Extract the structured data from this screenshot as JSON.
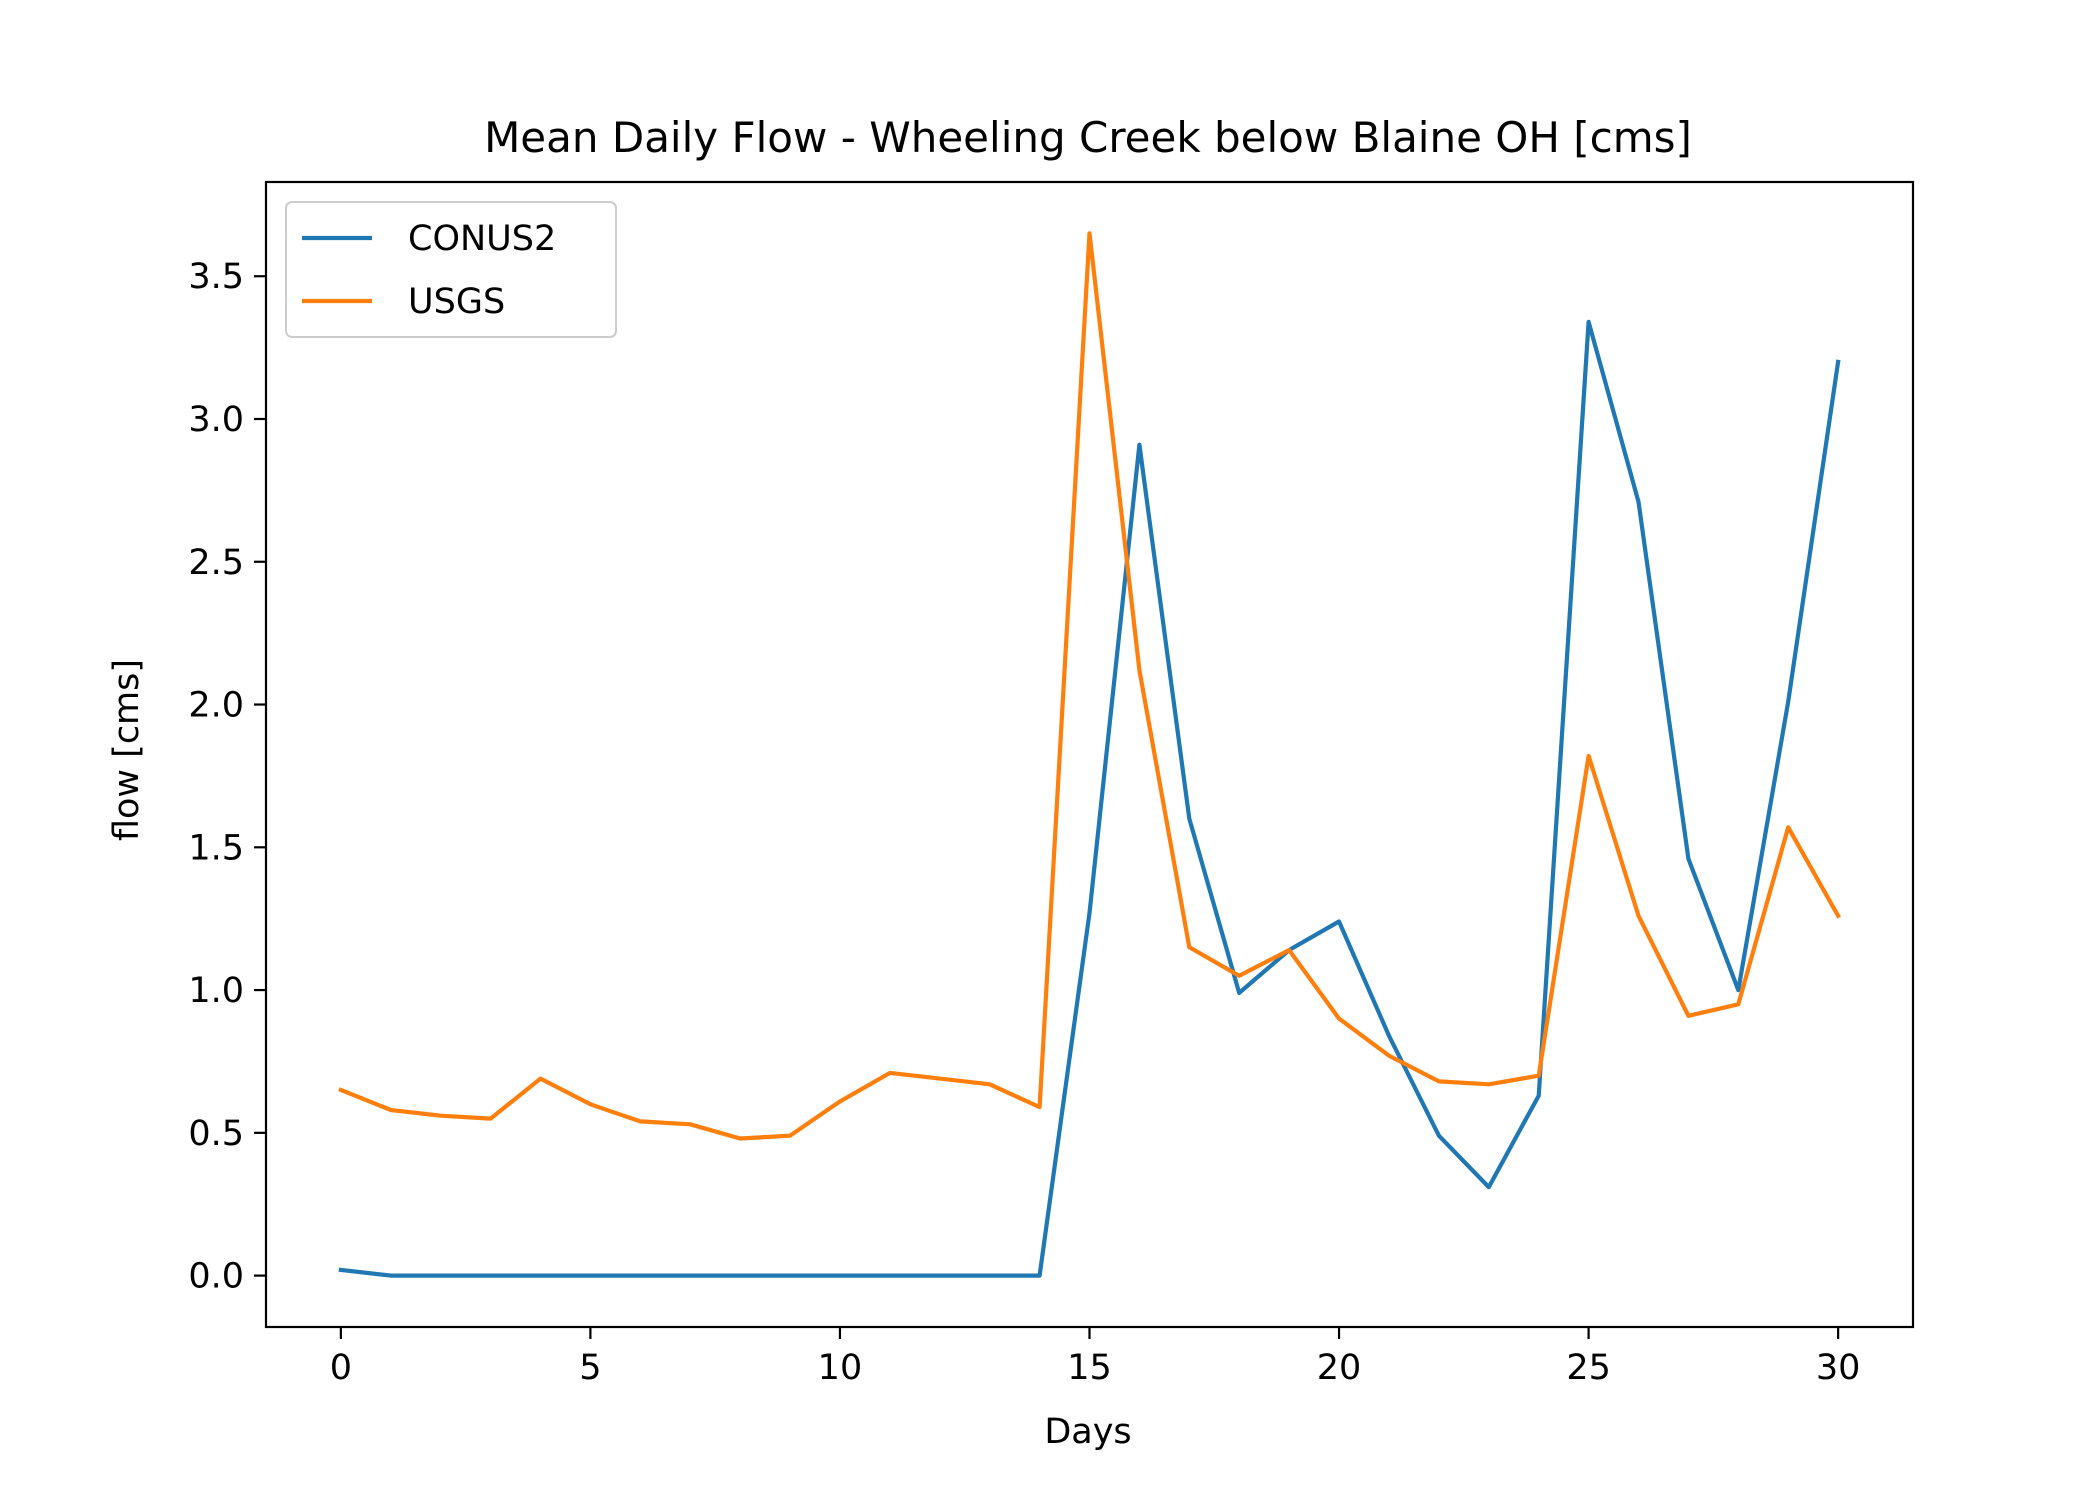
{
  "chart_data": {
    "type": "line",
    "title": "Mean Daily Flow - Wheeling Creek below Blaine OH [cms]",
    "xlabel": "Days",
    "ylabel": "flow [cms]",
    "xlim": [
      -1.5,
      31.5
    ],
    "ylim": [
      -0.18,
      3.83
    ],
    "xticks": [
      0,
      5,
      10,
      15,
      20,
      25,
      30
    ],
    "yticks": [
      0.0,
      0.5,
      1.0,
      1.5,
      2.0,
      2.5,
      3.0,
      3.5
    ],
    "ytick_labels": [
      "0.0",
      "0.5",
      "1.0",
      "1.5",
      "2.0",
      "2.5",
      "3.0",
      "3.5"
    ],
    "grid": false,
    "legend_position": "top-left",
    "x": [
      0,
      1,
      2,
      3,
      4,
      5,
      6,
      7,
      8,
      9,
      10,
      11,
      12,
      13,
      14,
      15,
      16,
      17,
      18,
      19,
      20,
      21,
      22,
      23,
      24,
      25,
      26,
      27,
      28,
      29,
      30
    ],
    "series": [
      {
        "name": "CONUS2",
        "color": "#1f77b4",
        "values": [
          0.02,
          0.0,
          0.0,
          0.0,
          0.0,
          0.0,
          0.0,
          0.0,
          0.0,
          0.0,
          0.0,
          0.0,
          0.0,
          0.0,
          0.0,
          1.27,
          2.91,
          1.6,
          0.99,
          1.14,
          1.24,
          0.84,
          0.49,
          0.31,
          0.63,
          3.34,
          2.71,
          1.46,
          1.0,
          2.01,
          3.2
        ]
      },
      {
        "name": "USGS",
        "color": "#ff7f0e",
        "values": [
          0.65,
          0.58,
          0.56,
          0.55,
          0.69,
          0.6,
          0.54,
          0.53,
          0.48,
          0.49,
          0.61,
          0.71,
          0.69,
          0.67,
          0.59,
          3.65,
          2.12,
          1.15,
          1.05,
          1.14,
          0.9,
          0.77,
          0.68,
          0.67,
          0.7,
          1.82,
          1.26,
          0.91,
          0.95,
          1.57,
          1.26
        ]
      }
    ]
  }
}
